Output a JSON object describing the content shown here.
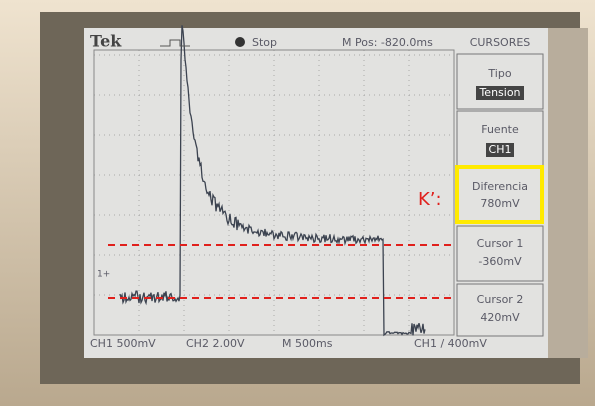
{
  "header": {
    "brand": "Tek",
    "trigger_state": "Stop",
    "position": "M Pos: -820.0ms"
  },
  "menu": {
    "title": "CURSORES",
    "items": [
      {
        "label": "Tipo",
        "value": "Tension"
      },
      {
        "label": "Fuente",
        "value": "CH1"
      },
      {
        "label": "Diferencia",
        "value": "780mV"
      },
      {
        "label": "Cursor 1",
        "value": "-360mV"
      },
      {
        "label": "Cursor 2",
        "value": "420mV"
      }
    ]
  },
  "annotation": "K’:",
  "channel_marker": "1+",
  "status_bar": {
    "ch1": "CH1 500mV",
    "ch2": "CH2 2.00V",
    "timebase": "M 500ms",
    "trigger": "CH1 / 400mV"
  }
}
